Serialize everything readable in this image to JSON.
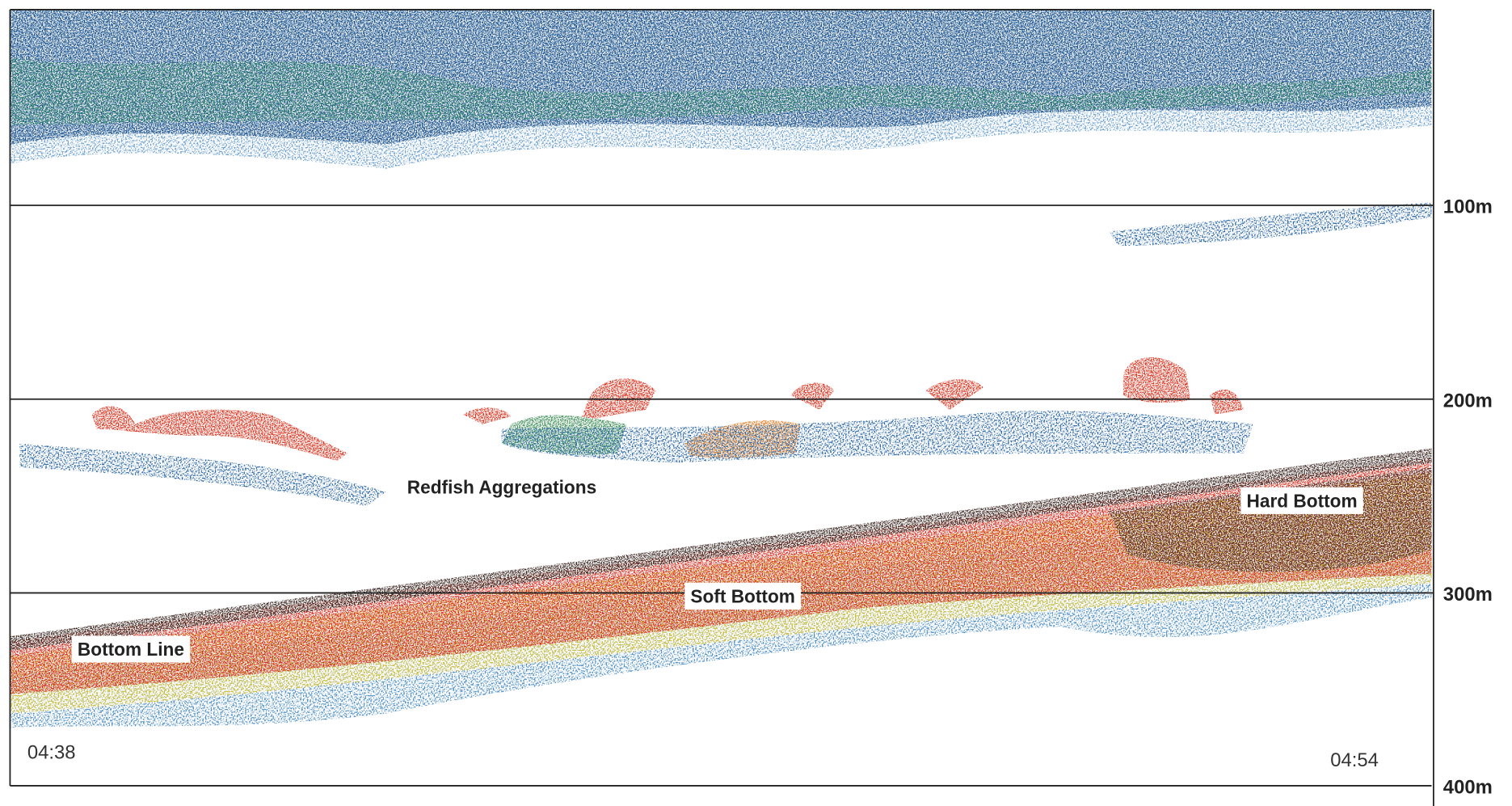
{
  "depth_labels": [
    "100m",
    "200m",
    "300m",
    "400m"
  ],
  "times": {
    "start": "04:38",
    "end": "04:54"
  },
  "annotations": {
    "redfish": "Redfish Aggregations",
    "soft_bottom": "Soft Bottom",
    "hard_bottom": "Hard Bottom",
    "bottom_line": "Bottom Line"
  }
}
